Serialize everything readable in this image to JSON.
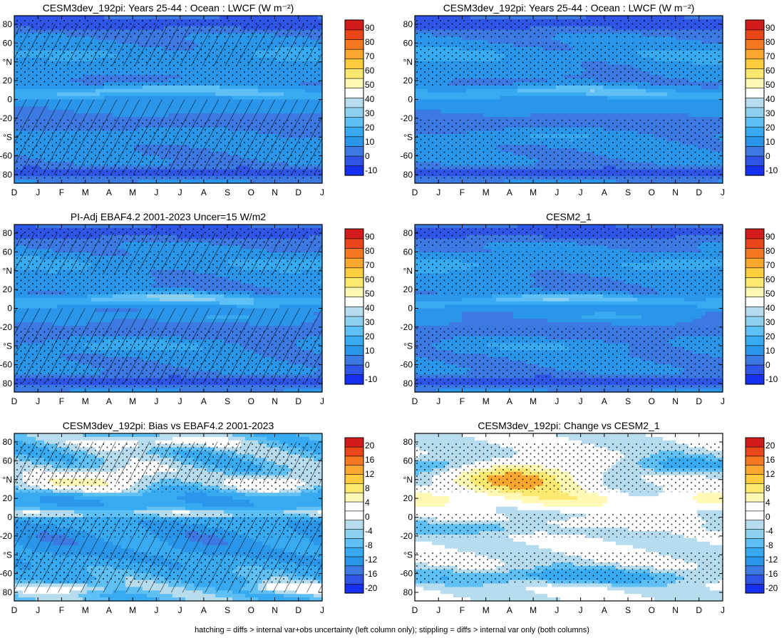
{
  "footer_note": "hatching = diffs > internal var+obs uncertainty (left column only); stippling = diffs > internal var only (both columns)",
  "shared_axes": {
    "x_ticks": [
      "D",
      "J",
      "F",
      "M",
      "A",
      "M",
      "J",
      "J",
      "A",
      "S",
      "O",
      "N",
      "D",
      "J"
    ],
    "y_ticks": [
      "80",
      "60",
      "°N",
      "20",
      "0",
      "-20",
      "°S",
      "-60",
      "80"
    ]
  },
  "palettes": {
    "lwcf": [
      "#1530f0",
      "#2f55e6",
      "#3d79e2",
      "#2a96ea",
      "#38aaf2",
      "#5ec0f4",
      "#8ed0f0",
      "#b6dcee",
      "#ffffff",
      "#fff9b5",
      "#fde870",
      "#fccc3f",
      "#f9a72f",
      "#f3781f",
      "#e9461a",
      "#d41b1b"
    ],
    "diff": [
      "#1530f0",
      "#2f55e6",
      "#3d79e2",
      "#2a96ea",
      "#38aaf2",
      "#5ec0f4",
      "#8ed0f0",
      "#b6dcee",
      "#ffffff",
      "#ffffff",
      "#fff9b5",
      "#fde870",
      "#fccc3f",
      "#f9a72f",
      "#f3781f",
      "#e9461a",
      "#d41b1b"
    ]
  },
  "chart_data": [
    {
      "type": "heatmap",
      "title": "CESM3dev_192pi: Years 25-44 : Ocean : LWCF (W m⁻²)",
      "xlabel": "",
      "ylabel": "",
      "colorbar_labels": [
        "90",
        "80",
        "70",
        "60",
        "50",
        "40",
        "30",
        "20",
        "10",
        "0",
        "-10"
      ],
      "colorbar_range": [
        -15,
        95
      ],
      "palette": "lwcf",
      "hatching": true,
      "stippling": true,
      "features": {
        "itcz_peak": 48,
        "tropical_lat": 7
      }
    },
    {
      "type": "heatmap",
      "title": "CESM3dev_192pi: Years 25-44 : Ocean : LWCF (W m⁻²)",
      "xlabel": "",
      "ylabel": "",
      "colorbar_labels": [
        "90",
        "80",
        "70",
        "60",
        "50",
        "40",
        "30",
        "20",
        "10",
        "0",
        "-10"
      ],
      "colorbar_range": [
        -15,
        95
      ],
      "palette": "lwcf",
      "hatching": false,
      "stippling": true,
      "features": {
        "itcz_peak": 46,
        "tropical_lat": 6
      }
    },
    {
      "type": "heatmap",
      "title": "PI-Adj EBAF4.2 2001-2023 Uncer=15 W/m2",
      "xlabel": "",
      "ylabel": "",
      "colorbar_labels": [
        "90",
        "80",
        "70",
        "60",
        "50",
        "40",
        "30",
        "20",
        "10",
        "0",
        "-10"
      ],
      "colorbar_range": [
        -15,
        95
      ],
      "palette": "lwcf",
      "hatching": true,
      "stippling": true,
      "features": {
        "itcz_peak": 50,
        "tropical_lat": 8
      }
    },
    {
      "type": "heatmap",
      "title": "CESM2_1",
      "xlabel": "",
      "ylabel": "",
      "colorbar_labels": [
        "90",
        "80",
        "70",
        "60",
        "50",
        "40",
        "30",
        "20",
        "10",
        "0",
        "-10"
      ],
      "colorbar_range": [
        -15,
        95
      ],
      "palette": "lwcf",
      "hatching": false,
      "stippling": true,
      "features": {
        "itcz_peak": 47,
        "tropical_lat": 7
      }
    },
    {
      "type": "heatmap",
      "title": "CESM3dev_192pi: Bias vs EBAF4.2 2001-2023",
      "xlabel": "",
      "ylabel": "",
      "colorbar_labels": [
        "20",
        "16",
        "12",
        "8",
        "4",
        "0",
        "-4",
        "-8",
        "-12",
        "-16",
        "-20"
      ],
      "colorbar_range": [
        -22,
        22
      ],
      "palette": "diff",
      "hatching": true,
      "stippling": true,
      "features": {
        "nh_spring_max": 6,
        "sh_min": -8
      }
    },
    {
      "type": "heatmap",
      "title": "CESM3dev_192pi: Change vs CESM2_1",
      "xlabel": "",
      "ylabel": "",
      "colorbar_labels": [
        "20",
        "16",
        "12",
        "8",
        "4",
        "0",
        "-4",
        "-8",
        "-12",
        "-16",
        "-20"
      ],
      "colorbar_range": [
        -22,
        22
      ],
      "palette": "diff",
      "hatching": false,
      "stippling": true,
      "features": {
        "nh_spring_max": 14,
        "sh_min": -4
      }
    }
  ]
}
